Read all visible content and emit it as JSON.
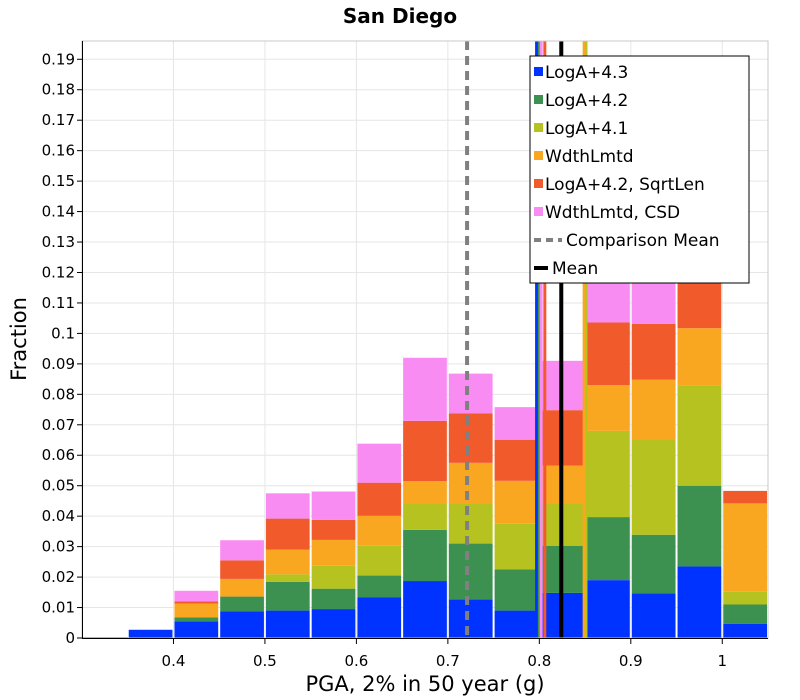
{
  "colors": {
    "LogA+4.3": "#0033ff",
    "LogA+4.2": "#3d9150",
    "LogA+4.1": "#b5c21f",
    "WdthLmtd": "#f9a620",
    "LogA+4.2, SqrtLen": "#f15a2b",
    "WdthLmtd, CSD": "#f98cf2",
    "grid": "#e6e6e6",
    "comparison_mean": "#808080",
    "mean": "#000000"
  },
  "chart_data": {
    "type": "bar",
    "stacked": true,
    "title": "San Diego",
    "xlabel": "PGA, 2% in 50 year (g)",
    "ylabel": "Fraction",
    "xlim": [
      0.3,
      1.05
    ],
    "ylim": [
      0,
      0.196
    ],
    "bin_width": 0.05,
    "xticks": [
      0.4,
      0.5,
      0.6,
      0.7,
      0.8,
      0.9,
      1
    ],
    "xtick_labels": [
      "0.4",
      "0.5",
      "0.6",
      "0.7",
      "0.8",
      "0.9",
      "1"
    ],
    "yticks": [
      0,
      0.01,
      0.02,
      0.03,
      0.04,
      0.05,
      0.06,
      0.07,
      0.08,
      0.09,
      0.1,
      0.11,
      0.12,
      0.13,
      0.14,
      0.15,
      0.16,
      0.17,
      0.18,
      0.19
    ],
    "ytick_labels": [
      "0",
      "0.01",
      "0.02",
      "0.03",
      "0.04",
      "0.05",
      "0.06",
      "0.07",
      "0.08",
      "0.09",
      "0.1",
      "0.11",
      "0.12",
      "0.13",
      "0.14",
      "0.15",
      "0.16",
      "0.17",
      "0.18",
      "0.19"
    ],
    "bin_centers": [
      0.325,
      0.375,
      0.425,
      0.475,
      0.525,
      0.575,
      0.625,
      0.675,
      0.725,
      0.775,
      0.825,
      0.875,
      0.925,
      0.975,
      1.025
    ],
    "series": [
      {
        "name": "LogA+4.3",
        "values": [
          0.0,
          0.0027,
          0.0055,
          0.0088,
          0.009,
          0.0095,
          0.0133,
          0.0187,
          0.0127,
          0.009,
          0.0148,
          0.019,
          0.0147,
          0.0235,
          0.0047
        ]
      },
      {
        "name": "LogA+4.2",
        "values": [
          0.0,
          0.0,
          0.0013,
          0.0048,
          0.0094,
          0.0067,
          0.0072,
          0.0168,
          0.0183,
          0.0135,
          0.0155,
          0.0207,
          0.0192,
          0.0265,
          0.0063
        ]
      },
      {
        "name": "LogA+4.1",
        "values": [
          0.0,
          0.0,
          0.0,
          0.0,
          0.0025,
          0.0075,
          0.0098,
          0.0085,
          0.013,
          0.015,
          0.014,
          0.0283,
          0.0311,
          0.033,
          0.0042
        ]
      },
      {
        "name": "WdthLmtd",
        "values": [
          0.0,
          0.0,
          0.0045,
          0.0058,
          0.0081,
          0.0085,
          0.0098,
          0.0075,
          0.0135,
          0.0141,
          0.0123,
          0.015,
          0.0198,
          0.0187,
          0.029
        ]
      },
      {
        "name": "LogA+4.2, SqrtLen",
        "values": [
          0.0,
          0.0,
          0.0007,
          0.0061,
          0.0102,
          0.0066,
          0.0109,
          0.0198,
          0.0162,
          0.0135,
          0.0182,
          0.0206,
          0.0183,
          0.0224,
          0.0041
        ]
      },
      {
        "name": "WdthLmtd, CSD",
        "values": [
          0.0,
          0.0,
          0.0035,
          0.0066,
          0.0083,
          0.0093,
          0.0128,
          0.0207,
          0.0131,
          0.0107,
          0.0162,
          0.0215,
          0.0195,
          0.0229,
          0.0
        ]
      }
    ],
    "mean_lines": [
      {
        "name": "LogA+4.3",
        "x": 0.797
      },
      {
        "name": "LogA+4.2",
        "x": 0.8
      },
      {
        "name": "LogA+4.1",
        "x": 0.851
      },
      {
        "name": "WdthLmtd",
        "x": 0.849
      },
      {
        "name": "LogA+4.2, SqrtLen",
        "x": 0.806
      },
      {
        "name": "WdthLmtd, CSD",
        "x": 0.802
      }
    ],
    "comparison_mean": 0.721,
    "mean": 0.824,
    "legend_position": "top-right",
    "legend": [
      {
        "label": "LogA+4.3",
        "kind": "square"
      },
      {
        "label": "LogA+4.2",
        "kind": "square"
      },
      {
        "label": "LogA+4.1",
        "kind": "square"
      },
      {
        "label": "WdthLmtd",
        "kind": "square"
      },
      {
        "label": "LogA+4.2, SqrtLen",
        "kind": "square"
      },
      {
        "label": "WdthLmtd, CSD",
        "kind": "square"
      },
      {
        "label": "Comparison Mean",
        "kind": "dashed"
      },
      {
        "label": "Mean",
        "kind": "solid"
      }
    ]
  }
}
